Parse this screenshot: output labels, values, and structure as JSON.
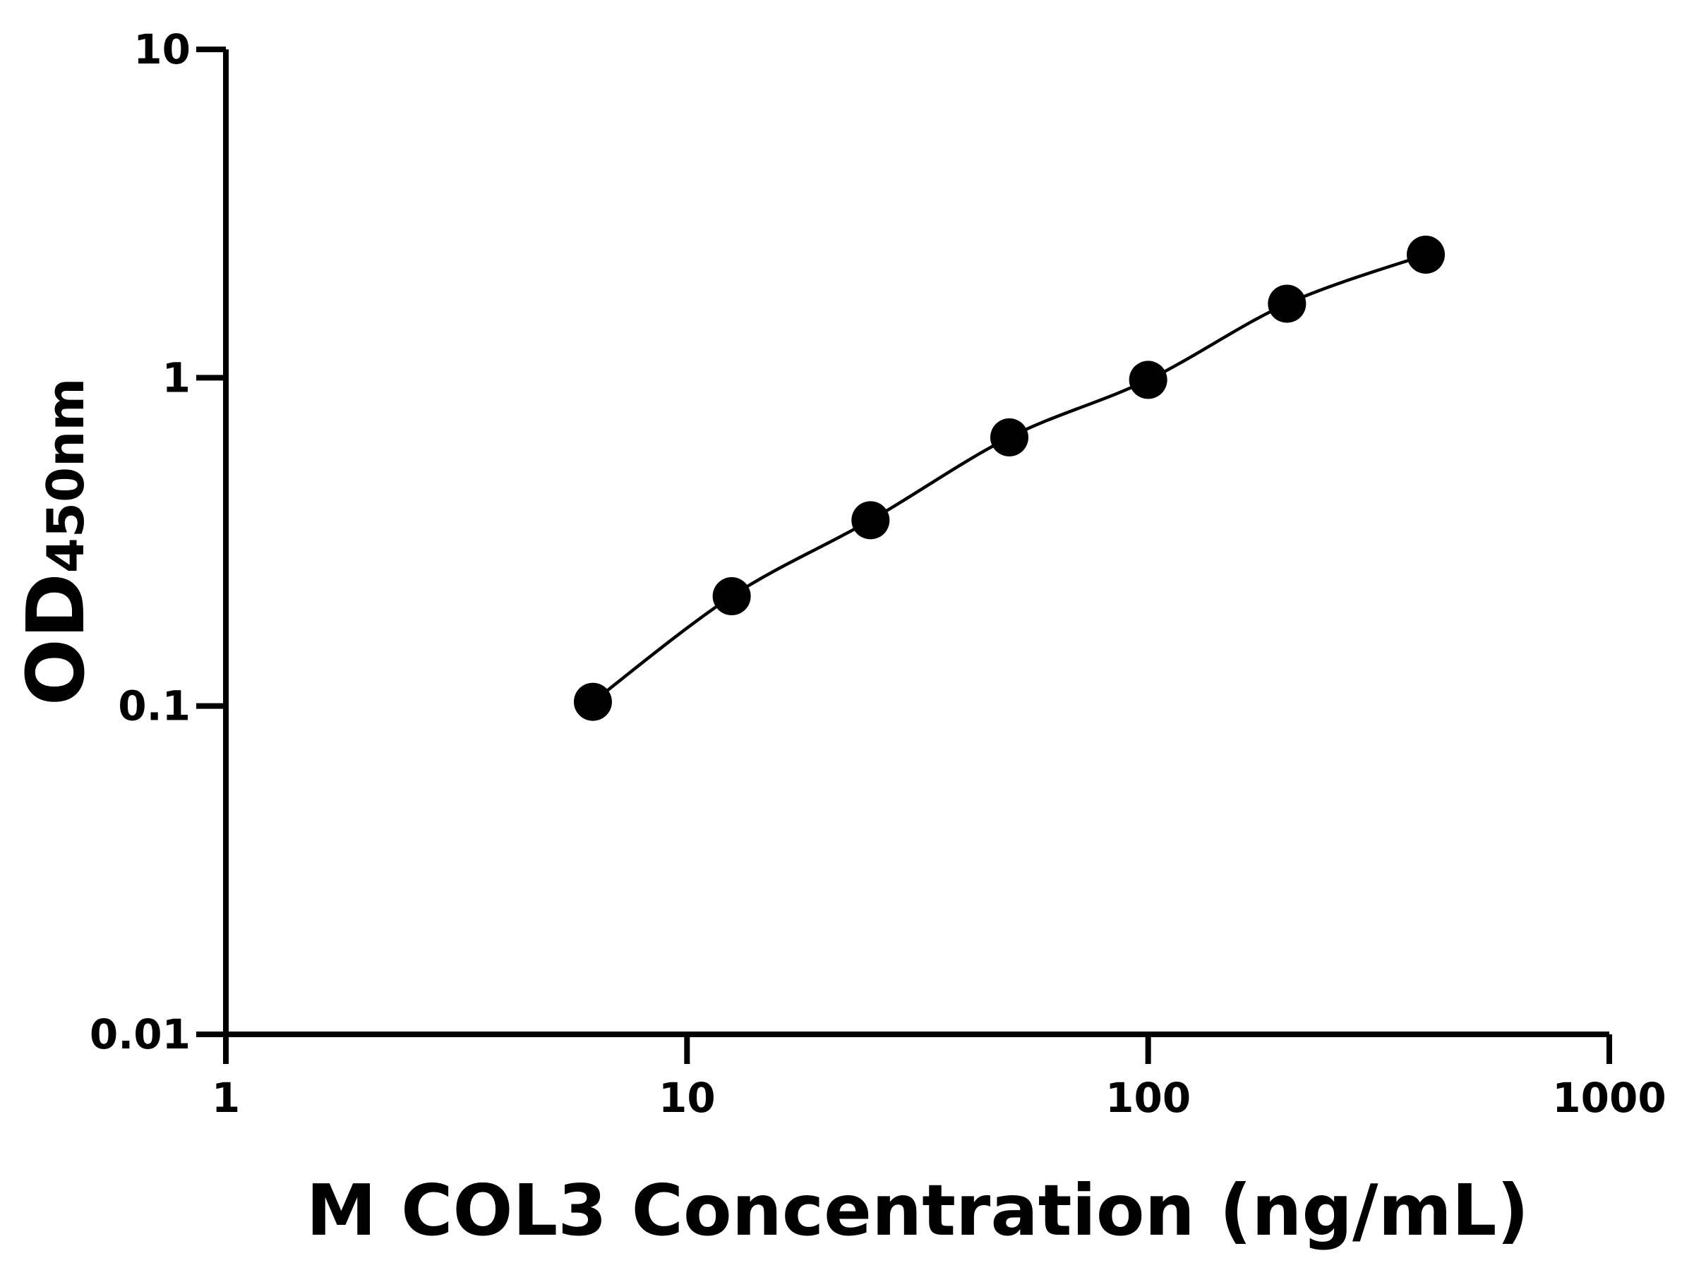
{
  "chart_data": {
    "type": "scatter",
    "title": "",
    "xlabel": "M COL3 Concentration (ng/mL)",
    "ylabel_main": "OD",
    "ylabel_sub": "450nm",
    "x_scale": "log",
    "y_scale": "log",
    "xlim": [
      1,
      1000
    ],
    "ylim": [
      0.01,
      10
    ],
    "x_ticks": [
      "1",
      "10",
      "100",
      "1000"
    ],
    "y_ticks": [
      "0.01",
      "0.1",
      "1",
      "10"
    ],
    "grid": false,
    "legend": "none",
    "fit_line": true,
    "colors": {
      "points": "#000000",
      "line": "#000000",
      "axes": "#000000"
    },
    "series": [
      {
        "x": [
          6.25,
          12.5,
          25,
          50,
          100,
          200,
          400
        ],
        "y": [
          0.103,
          0.216,
          0.368,
          0.658,
          0.985,
          1.68,
          2.37
        ]
      }
    ]
  }
}
